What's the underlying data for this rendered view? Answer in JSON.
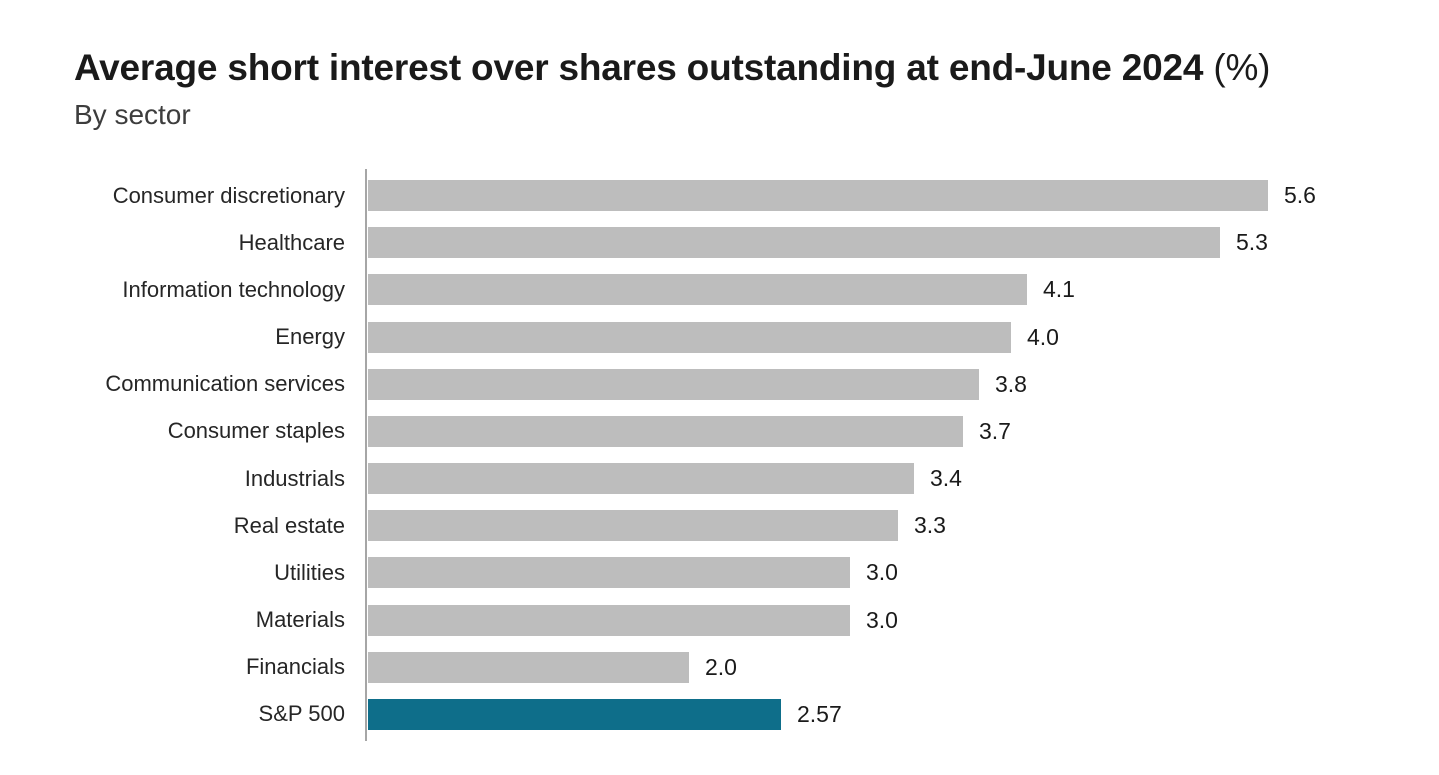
{
  "header": {
    "title": "Average short interest over shares outstanding at end-June 2024",
    "title_suffix": " (%)",
    "subtitle": "By sector"
  },
  "chart_data": {
    "type": "bar",
    "orientation": "horizontal",
    "title": "Average short interest over shares outstanding at end-June 2024 (%)",
    "subtitle": "By sector",
    "categories": [
      "Consumer discretionary",
      "Healthcare",
      "Information technology",
      "Energy",
      "Communication services",
      "Consumer staples",
      "Industrials",
      "Real estate",
      "Utilities",
      "Materials",
      "Financials",
      "S&P 500"
    ],
    "values": [
      5.6,
      5.3,
      4.1,
      4.0,
      3.8,
      3.7,
      3.4,
      3.3,
      3.0,
      3.0,
      2.0,
      2.57
    ],
    "value_labels": [
      "5.6",
      "5.3",
      "4.1",
      "4.0",
      "3.8",
      "3.7",
      "3.4",
      "3.3",
      "3.0",
      "3.0",
      "2.0",
      "2.57"
    ],
    "xlim": [
      0,
      6.53
    ],
    "grid": false,
    "legend": "none",
    "highlight_category": "S&P 500",
    "colors": {
      "bar": "#bdbdbd",
      "highlight": "#0e6e8a",
      "axis_line": "#a6a6a6"
    }
  }
}
